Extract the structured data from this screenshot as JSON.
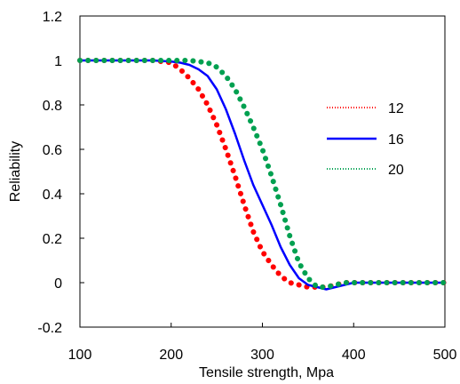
{
  "chart_data": {
    "type": "line",
    "title": "",
    "xlabel": "Tensile strength, Mpa",
    "ylabel": "Reliability",
    "xlim": [
      100,
      500
    ],
    "ylim": [
      -0.2,
      1.2
    ],
    "x_ticks": [
      100,
      200,
      300,
      400,
      500
    ],
    "x_tick_labels": [
      "100",
      "200",
      "300",
      "400",
      "500"
    ],
    "y_ticks": [
      -0.2,
      0,
      0.2,
      0.4,
      0.6,
      0.8,
      1,
      1.2
    ],
    "y_tick_labels": [
      "-0.2",
      "0",
      "0.2",
      "0.4",
      "0.6",
      "0.8",
      "1",
      "1.2"
    ],
    "grid": false,
    "legend_position": "right",
    "x": [
      100,
      150,
      180,
      200,
      210,
      220,
      230,
      240,
      250,
      260,
      270,
      280,
      290,
      300,
      310,
      320,
      330,
      340,
      350,
      360,
      370,
      380,
      390,
      400,
      450,
      500
    ],
    "series": [
      {
        "name": "12",
        "color": "#ff0000",
        "style": "dotted",
        "values": [
          1.0,
          1.0,
          1.0,
          0.99,
          0.96,
          0.92,
          0.87,
          0.8,
          0.71,
          0.6,
          0.48,
          0.35,
          0.23,
          0.14,
          0.08,
          0.03,
          0.0,
          -0.01,
          -0.02,
          -0.02,
          -0.02,
          -0.01,
          0.0,
          0.0,
          0.0,
          0.0
        ]
      },
      {
        "name": "16",
        "color": "#0000ff",
        "style": "solid",
        "values": [
          1.0,
          1.0,
          1.0,
          0.995,
          0.99,
          0.98,
          0.96,
          0.93,
          0.87,
          0.78,
          0.67,
          0.55,
          0.44,
          0.35,
          0.26,
          0.16,
          0.08,
          0.02,
          -0.01,
          -0.02,
          -0.03,
          -0.02,
          -0.01,
          0.0,
          0.0,
          0.0
        ]
      },
      {
        "name": "20",
        "color": "#00a050",
        "style": "dotted",
        "values": [
          1.0,
          1.0,
          1.0,
          1.0,
          1.0,
          1.0,
          0.995,
          0.99,
          0.97,
          0.93,
          0.87,
          0.79,
          0.7,
          0.6,
          0.48,
          0.35,
          0.21,
          0.09,
          0.02,
          -0.02,
          -0.02,
          -0.01,
          0.0,
          0.0,
          0.0,
          0.0
        ]
      }
    ]
  }
}
